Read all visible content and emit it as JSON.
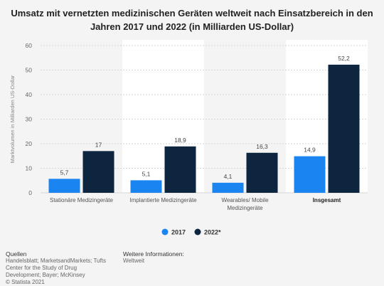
{
  "title": "Umsatz mit vernetzten medizinischen Geräten weltweit nach Einsatzbereich in den Jahren 2017 und 2022 (in Milliarden US-Dollar)",
  "colors": {
    "series_2017": "#1a84f0",
    "series_2022": "#0d253f",
    "highlight_band": "#ffffff",
    "background": "#f4f4f4"
  },
  "chart_data": {
    "type": "bar",
    "title": "Umsatz mit vernetzten medizinischen Geräten weltweit nach Einsatzbereich in den Jahren 2017 und 2022 (in Milliarden US-Dollar)",
    "ylabel": "Marktvolumen in Milliarden US-Dollar",
    "xlabel": "",
    "ylim": [
      0,
      60
    ],
    "yticks": [
      0,
      10,
      20,
      30,
      40,
      50,
      60
    ],
    "grid": true,
    "legend_position": "bottom",
    "categories": [
      "Stationäre Medizingeräte",
      "Implantierte Medizingeräte",
      "Wearables/ Mobile Medizingeräte",
      "Insgesamt"
    ],
    "series": [
      {
        "name": "2017",
        "values": [
          5.7,
          5.1,
          4.1,
          14.9
        ],
        "labels": [
          "5,7",
          "5,1",
          "4,1",
          "14,9"
        ]
      },
      {
        "name": "2022*",
        "values": [
          17,
          18.9,
          16.3,
          52.2
        ],
        "labels": [
          "17",
          "18,9",
          "16,3",
          "52,2"
        ]
      }
    ]
  },
  "footer": {
    "sources_heading": "Quellen",
    "sources_text": "Handelsblatt; MarketsandMarkets; Tufts Center for the Study of Drug Development; Bayer; McKinsey",
    "copyright": "© Statista 2021",
    "info_heading": "Weitere Informationen:",
    "info_text": "Weltweit"
  }
}
